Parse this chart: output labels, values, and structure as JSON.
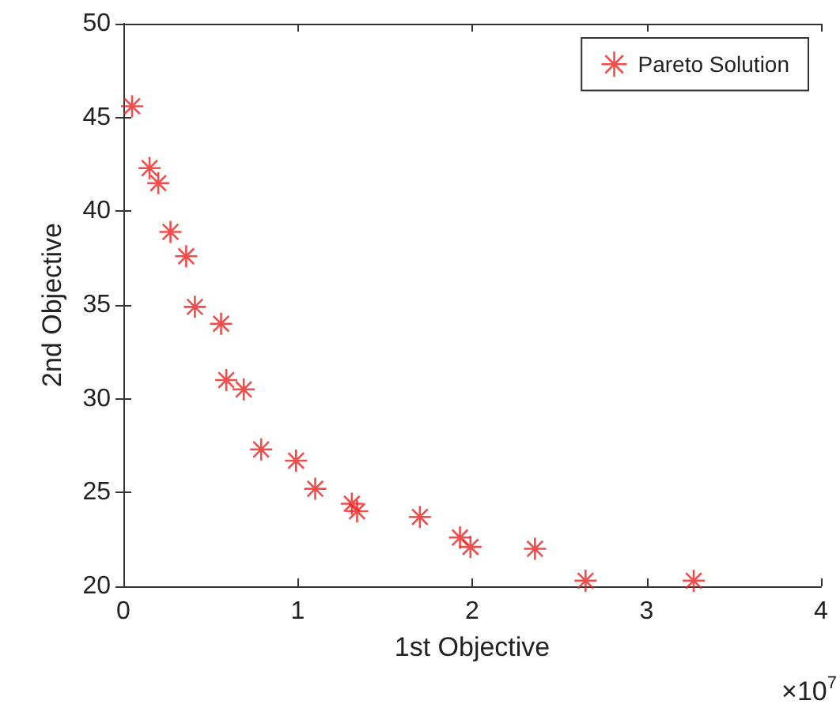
{
  "chart_data": {
    "type": "scatter",
    "xlabel": "1st Objective",
    "ylabel": "2nd Objective",
    "annotations": [
      "×10$^{7}$"
    ],
    "x": [
      0.05,
      0.15,
      0.2,
      0.27,
      0.36,
      0.41,
      0.56,
      0.59,
      0.69,
      0.79,
      0.99,
      1.1,
      1.31,
      1.34,
      1.7,
      1.93,
      1.99,
      2.36,
      2.65,
      3.27
    ],
    "series": [
      {
        "name": "Pareto Solution",
        "color": "#ee2020",
        "values": [
          45.6,
          42.3,
          41.5,
          38.9,
          37.6,
          34.9,
          34.0,
          31.0,
          30.5,
          27.3,
          26.7,
          25.2,
          24.4,
          24.0,
          23.7,
          22.6,
          22.1,
          22.0,
          20.3,
          20.3
        ]
      }
    ],
    "xlim": [
      0,
      4
    ],
    "xticks": [
      0,
      1,
      2,
      3,
      4
    ],
    "ylim": [
      20,
      50
    ],
    "yticks": [
      20,
      25,
      30,
      35,
      40,
      45,
      50
    ],
    "legend": "top right",
    "marker": "cross",
    "grid": false
  }
}
